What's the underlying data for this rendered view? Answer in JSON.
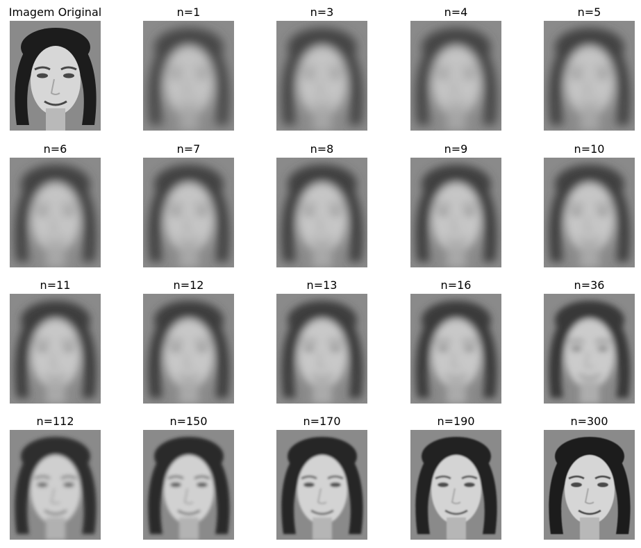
{
  "panels": [
    {
      "title": "Imagem Original",
      "sharpness": 1.0
    },
    {
      "title": "n=1",
      "sharpness": 0.0
    },
    {
      "title": "n=3",
      "sharpness": 0.03
    },
    {
      "title": "n=4",
      "sharpness": 0.05
    },
    {
      "title": "n=5",
      "sharpness": 0.07
    },
    {
      "title": "n=6",
      "sharpness": 0.09
    },
    {
      "title": "n=7",
      "sharpness": 0.11
    },
    {
      "title": "n=8",
      "sharpness": 0.13
    },
    {
      "title": "n=9",
      "sharpness": 0.15
    },
    {
      "title": "n=10",
      "sharpness": 0.17
    },
    {
      "title": "n=11",
      "sharpness": 0.19
    },
    {
      "title": "n=12",
      "sharpness": 0.21
    },
    {
      "title": "n=13",
      "sharpness": 0.23
    },
    {
      "title": "n=16",
      "sharpness": 0.27
    },
    {
      "title": "n=36",
      "sharpness": 0.38
    },
    {
      "title": "n=112",
      "sharpness": 0.6
    },
    {
      "title": "n=150",
      "sharpness": 0.7
    },
    {
      "title": "n=170",
      "sharpness": 0.8
    },
    {
      "title": "n=190",
      "sharpness": 0.87
    },
    {
      "title": "n=300",
      "sharpness": 0.97
    }
  ]
}
